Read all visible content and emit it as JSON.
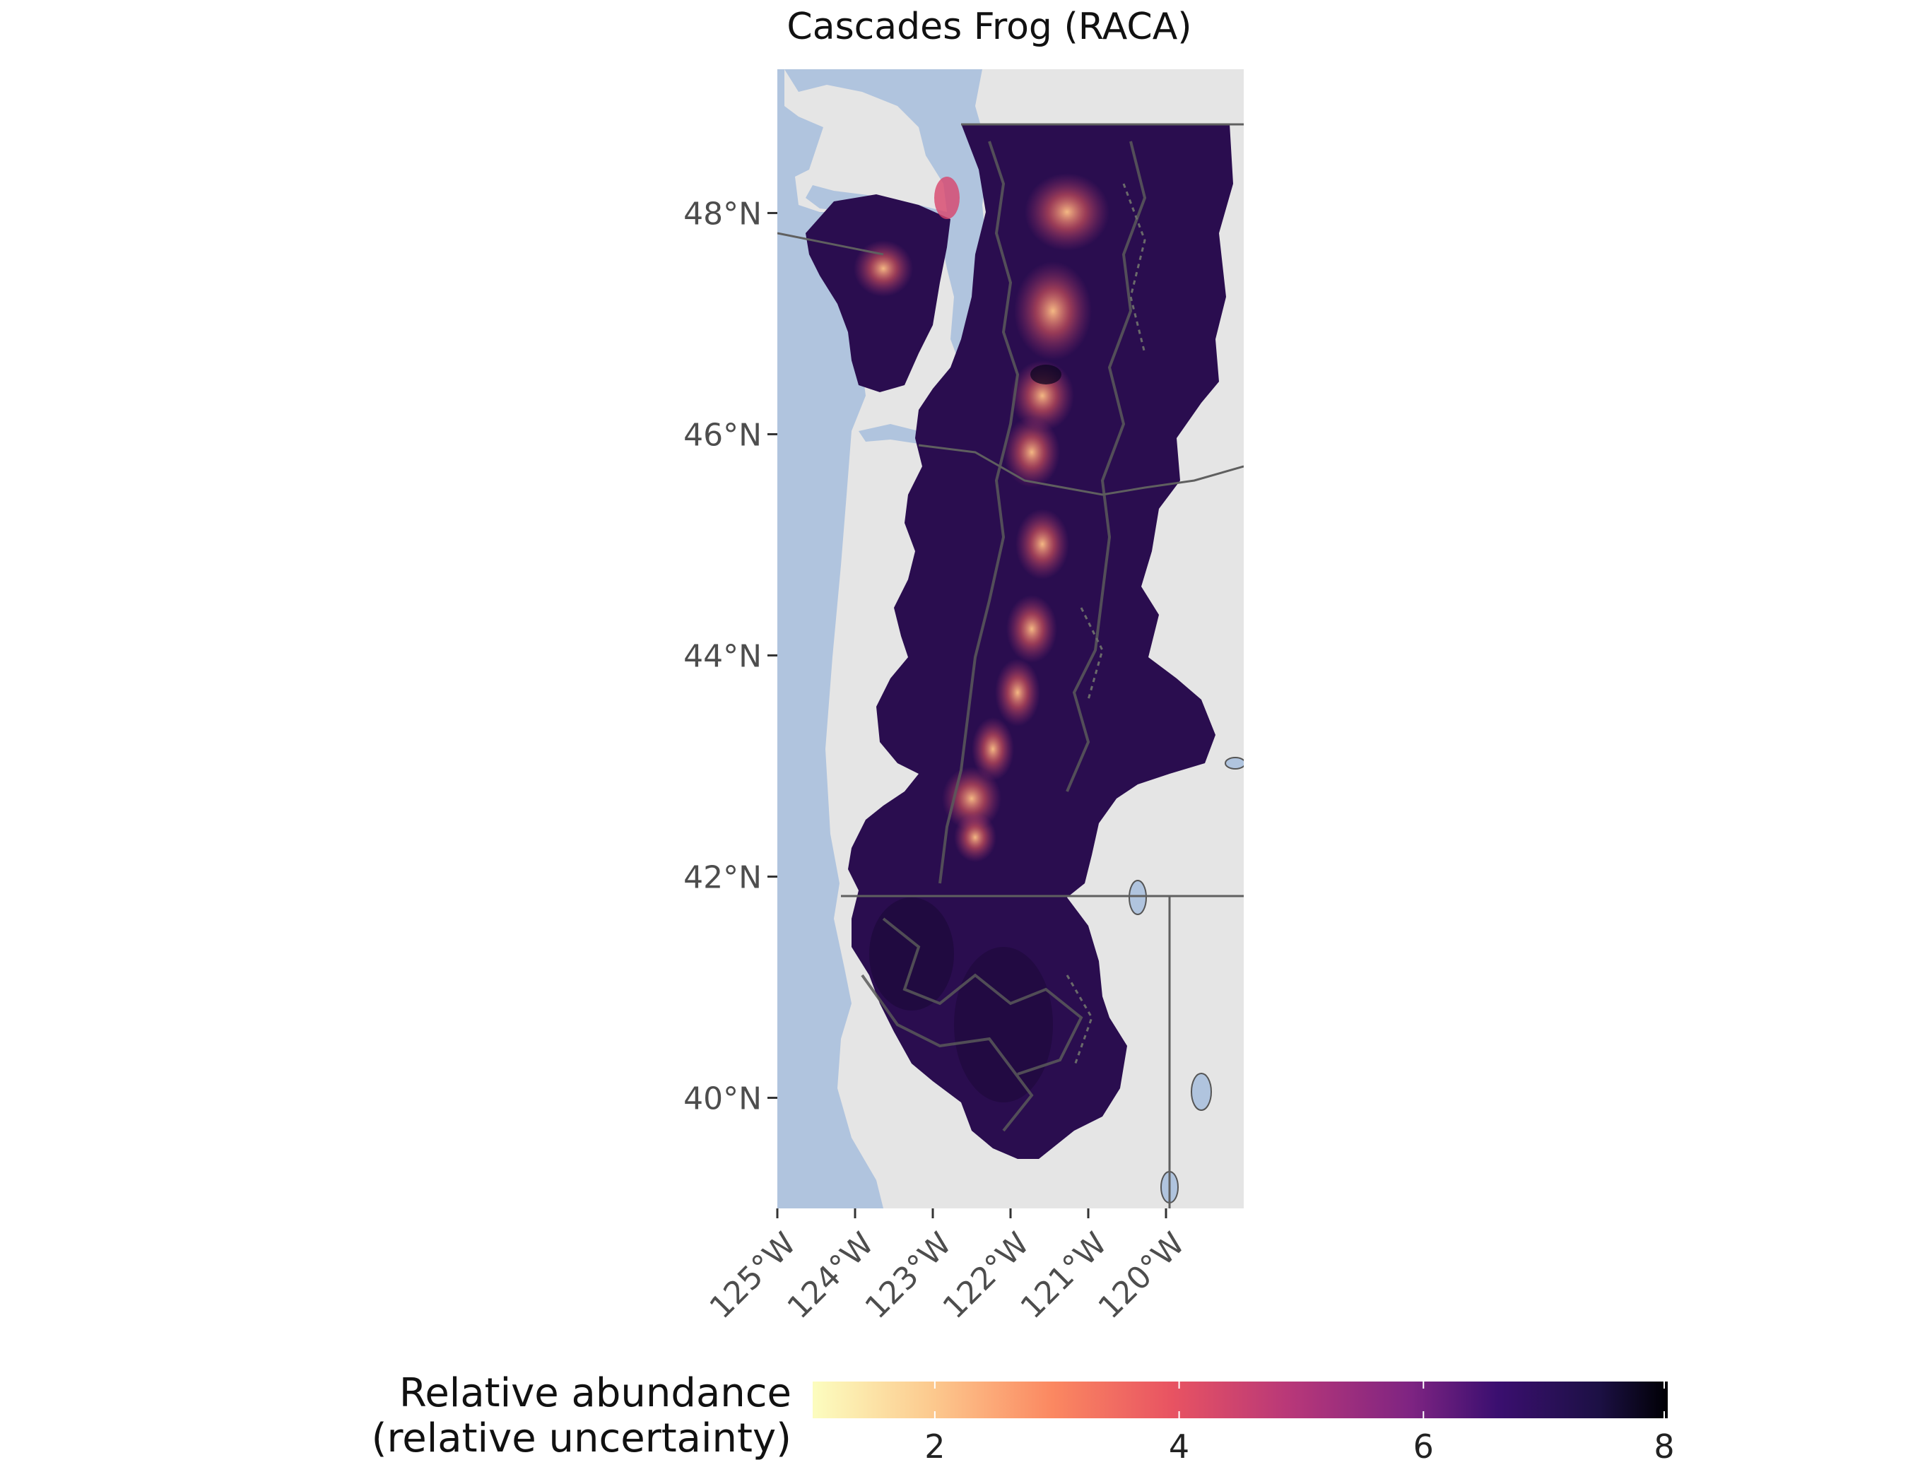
{
  "map": {
    "title": "Cascades Frog (RACA)",
    "colors": {
      "panel": "#e5e5e5",
      "water": "#b0c4de",
      "boundary": "#555555",
      "admin": "#666666"
    },
    "y_ticks": [
      "48°N",
      "46°N",
      "44°N",
      "42°N",
      "40°N"
    ],
    "x_ticks": [
      "125°W",
      "124°W",
      "123°W",
      "122°W",
      "121°W",
      "120°W"
    ],
    "extent": {
      "lon_min": -125,
      "lon_max": -119,
      "lat_min": 39,
      "lat_max": 49.3
    }
  },
  "legend": {
    "title_line1": "Relative abundance",
    "title_line2": "(relative uncertainty)",
    "scale": "magma (reversed)",
    "range": [
      1,
      8
    ],
    "ticks": [
      "2",
      "4",
      "6",
      "8"
    ],
    "tick_values": [
      2,
      4,
      6,
      8
    ]
  }
}
